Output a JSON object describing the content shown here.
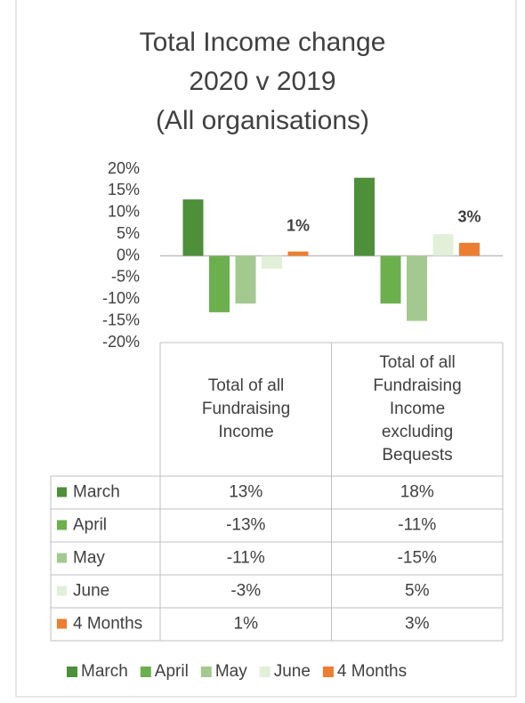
{
  "chart_data": {
    "type": "bar",
    "title": "Total Income change\n2020 v 2019\n(All organisations)",
    "categories": [
      "Total of all Fundraising Income",
      "Total of all Fundraising Income excluding Bequests"
    ],
    "series": [
      {
        "name": "March",
        "color": "#4e8f3a",
        "values": [
          13,
          18
        ],
        "value_labels": [
          "13%",
          "18%"
        ]
      },
      {
        "name": "April",
        "color": "#6cb04e",
        "values": [
          -13,
          -11
        ],
        "value_labels": [
          "-13%",
          "-11%"
        ]
      },
      {
        "name": "May",
        "color": "#a3c990",
        "values": [
          -11,
          -15
        ],
        "value_labels": [
          "-11%",
          "-15%"
        ]
      },
      {
        "name": "June",
        "color": "#e2efd9",
        "values": [
          -3,
          5
        ],
        "value_labels": [
          "-3%",
          "5%"
        ]
      },
      {
        "name": "4 Months",
        "color": "#ed7d31",
        "values": [
          1,
          3
        ],
        "value_labels": [
          "1%",
          "3%"
        ],
        "data_labels": true
      }
    ],
    "ylim": [
      -20,
      20
    ],
    "yticks": [
      {
        "value": 20,
        "label": "20%"
      },
      {
        "value": 15,
        "label": "15%"
      },
      {
        "value": 10,
        "label": "10%"
      },
      {
        "value": 5,
        "label": "5%"
      },
      {
        "value": 0,
        "label": "0%"
      },
      {
        "value": -5,
        "label": "-5%"
      },
      {
        "value": -10,
        "label": "-10%"
      },
      {
        "value": -15,
        "label": "-15%"
      },
      {
        "value": -20,
        "label": "-20%"
      }
    ],
    "grid": false,
    "legend": "bottom"
  }
}
